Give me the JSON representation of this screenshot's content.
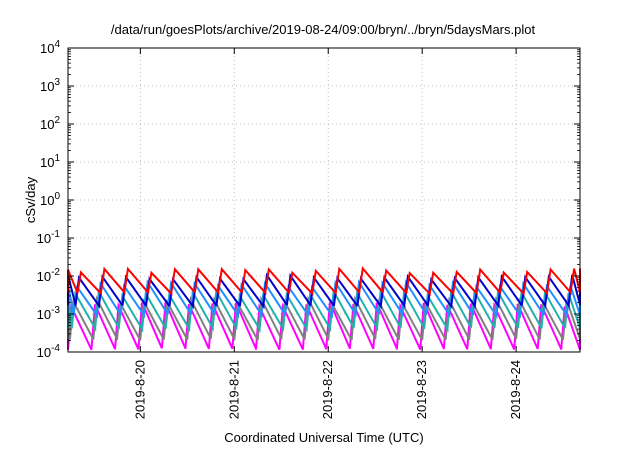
{
  "chart_data": {
    "type": "line",
    "title": "/data/run/goesPlots/archive/2019-08-24/09:00/bryn/../bryn/5daysMars.plot",
    "xlabel": "Coordinated Universal Time (UTC)",
    "ylabel": "cSv/day",
    "yscale": "log",
    "ylim": [
      0.0001,
      10000
    ],
    "xlim": [
      0,
      5.45
    ],
    "grid": true,
    "y_ticks": [
      {
        "base": "10",
        "exp": "-4"
      },
      {
        "base": "10",
        "exp": "-3"
      },
      {
        "base": "10",
        "exp": "-2"
      },
      {
        "base": "10",
        "exp": "-1"
      },
      {
        "base": "10",
        "exp": "0"
      },
      {
        "base": "10",
        "exp": "1"
      },
      {
        "base": "10",
        "exp": "2"
      },
      {
        "base": "10",
        "exp": "3"
      },
      {
        "base": "10",
        "exp": "4"
      }
    ],
    "x_ticks": [
      {
        "label": "2019-8-20",
        "value": 0.77
      },
      {
        "label": "2019-8-21",
        "value": 1.77
      },
      {
        "label": "2019-8-22",
        "value": 2.77
      },
      {
        "label": "2019-8-23",
        "value": 3.77
      },
      {
        "label": "2019-8-24",
        "value": 4.77
      }
    ],
    "series": [
      {
        "color": "#ff00ff",
        "period": 0.25,
        "high": 0.0018,
        "low": 0.0001,
        "phase": 0.0
      },
      {
        "color": "#808080",
        "period": 0.25,
        "high": 0.0022,
        "low": 0.00018,
        "phase": 0.02
      },
      {
        "color": "#20b2aa",
        "period": 0.25,
        "high": 0.0035,
        "low": 0.00035,
        "phase": 0.04
      },
      {
        "color": "#1e90ff",
        "period": 0.25,
        "high": 0.006,
        "low": 0.0008,
        "phase": 0.06
      },
      {
        "color": "#0000cd",
        "period": 0.25,
        "high": 0.0095,
        "low": 0.0014,
        "phase": 0.08
      },
      {
        "color": "#ff0000",
        "period": 0.25,
        "high": 0.014,
        "low": 0.003,
        "phase": 0.1
      }
    ]
  }
}
